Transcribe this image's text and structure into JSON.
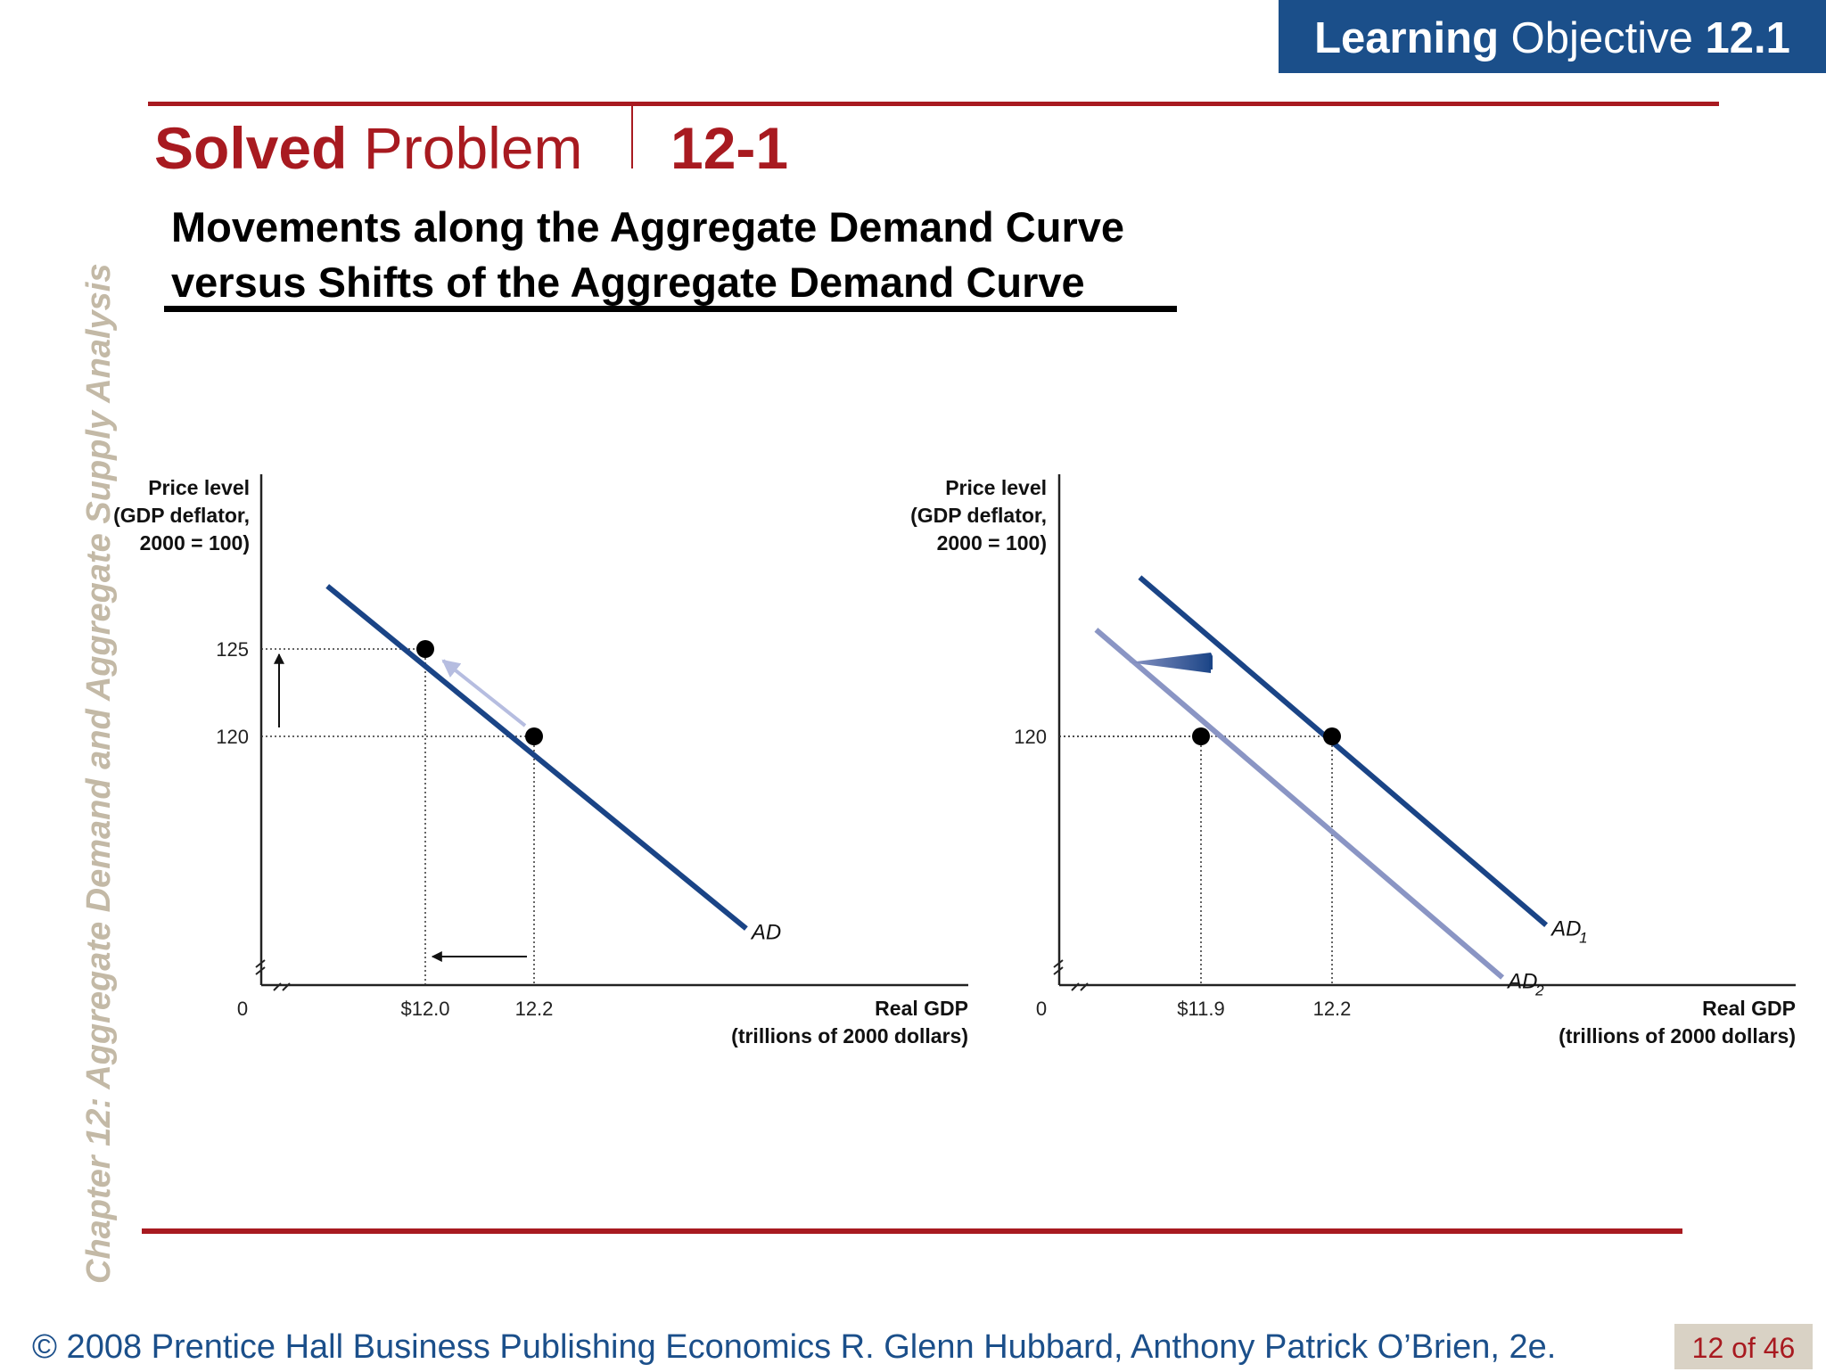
{
  "header": {
    "badge_bold": "Learning",
    "badge_regular": "Objective",
    "badge_number": "12.1",
    "solved_bold": "Solved",
    "solved_regular": "Problem",
    "solved_number": "12-1",
    "headline_line1": "Movements along the Aggregate Demand Curve",
    "headline_line2": "versus Shifts of the Aggregate Demand Curve"
  },
  "sidebar": {
    "chapter_title": "Chapter 12:  Aggregate Demand and Aggregate Supply Analysis"
  },
  "footer": {
    "copyright": "© 2008 Prentice Hall Business Publishing   Economics  R. Glenn Hubbard, Anthony Patrick O’Brien, 2e.",
    "page": "12 of 46"
  },
  "colors": {
    "brand_blue": "#1b4f8a",
    "brand_red": "#a81a20",
    "curve_dark": "#1a4486",
    "curve_light": "#8a95c4",
    "sidebar_tan": "#c3b9a6"
  },
  "chart_data": [
    {
      "type": "line",
      "ylabel_lines": [
        "Price level",
        "(GDP deflator,",
        "2000 = 100)"
      ],
      "xlabel_lines": [
        "Real GDP",
        "(trillions of 2000 dollars)"
      ],
      "origin_label": "0",
      "x_ticks": [
        {
          "value": 12.0,
          "label": "$12.0"
        },
        {
          "value": 12.2,
          "label": "12.2"
        }
      ],
      "y_ticks": [
        {
          "value": 125,
          "label": "125"
        },
        {
          "value": 120,
          "label": "120"
        }
      ],
      "series": [
        {
          "name": "AD",
          "points": [
            [
              11.82,
              128.6
            ],
            [
              12.59,
              109.0
            ]
          ]
        }
      ],
      "points": [
        [
          12.0,
          125
        ],
        [
          12.2,
          120
        ]
      ],
      "annotations": [
        "movement along AD from (12.2, 120) to (12.0, 125)"
      ]
    },
    {
      "type": "line",
      "ylabel_lines": [
        "Price level",
        "(GDP deflator,",
        "2000 = 100)"
      ],
      "xlabel_lines": [
        "Real GDP",
        "(trillions of 2000 dollars)"
      ],
      "origin_label": "0",
      "x_ticks": [
        {
          "value": 11.9,
          "label": "$11.9"
        },
        {
          "value": 12.2,
          "label": "12.2"
        }
      ],
      "y_ticks": [
        {
          "value": 120,
          "label": "120"
        }
      ],
      "series": [
        {
          "name": "AD1",
          "label_main": "AD",
          "label_sub": "1",
          "points": [
            [
              11.76,
              129.1
            ],
            [
              12.69,
              109.2
            ]
          ]
        },
        {
          "name": "AD2",
          "label_main": "AD",
          "label_sub": "2",
          "points": [
            [
              11.66,
              126.1
            ],
            [
              12.59,
              106.2
            ]
          ]
        }
      ],
      "points": [
        [
          11.9,
          120
        ],
        [
          12.2,
          120
        ]
      ],
      "annotations": [
        "AD shifts left from AD1 to AD2"
      ]
    }
  ]
}
